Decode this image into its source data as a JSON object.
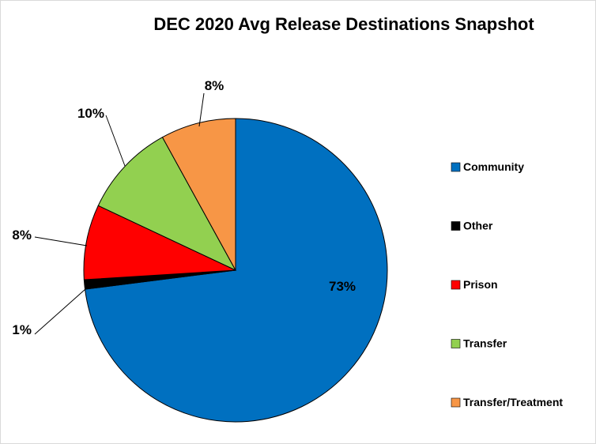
{
  "chart_data": {
    "type": "pie",
    "title": "DEC 2020 Avg Release Destinations Snapshot",
    "categories": [
      "Community",
      "Other",
      "Prison",
      "Transfer",
      "Transfer/Treatment"
    ],
    "values": [
      73,
      1,
      8,
      10,
      8
    ],
    "labels": [
      "73%",
      "1%",
      "8%",
      "10%",
      "8%"
    ],
    "colors": [
      "#0070C0",
      "#000000",
      "#FF0000",
      "#92D050",
      "#F79646"
    ],
    "legend_position": "right"
  }
}
